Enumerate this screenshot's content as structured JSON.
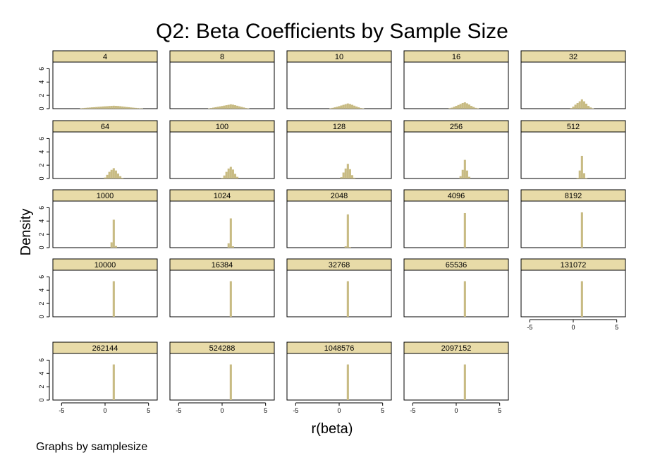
{
  "chart_data": {
    "type": "bar",
    "title": "Q2: Beta Coefficients by Sample Size",
    "xlabel": "r(beta)",
    "ylabel": "Density",
    "note": "Graphs by samplesize",
    "xlim": [
      -6,
      6
    ],
    "ylim": [
      0,
      7
    ],
    "xticks": [
      -5,
      0,
      5
    ],
    "yticks": [
      0,
      2,
      4,
      6
    ],
    "bin_width": 0.25,
    "colors": {
      "bar": "#c8bb83",
      "strip": "#e8dba8",
      "frame": "#000000"
    },
    "panels": [
      {
        "label": "4",
        "bins": [
          {
            "x": -2.75,
            "y": 0.06
          },
          {
            "x": -2.5,
            "y": 0.09
          },
          {
            "x": -2.25,
            "y": 0.12
          },
          {
            "x": -2,
            "y": 0.15
          },
          {
            "x": -1.75,
            "y": 0.17
          },
          {
            "x": -1.5,
            "y": 0.2
          },
          {
            "x": -1.25,
            "y": 0.22
          },
          {
            "x": -1,
            "y": 0.25
          },
          {
            "x": -0.75,
            "y": 0.28
          },
          {
            "x": -0.5,
            "y": 0.3
          },
          {
            "x": -0.25,
            "y": 0.33
          },
          {
            "x": 0,
            "y": 0.35
          },
          {
            "x": 0.25,
            "y": 0.37
          },
          {
            "x": 0.5,
            "y": 0.4
          },
          {
            "x": 0.75,
            "y": 0.42
          },
          {
            "x": 1,
            "y": 0.44
          },
          {
            "x": 1.25,
            "y": 0.42
          },
          {
            "x": 1.5,
            "y": 0.4
          },
          {
            "x": 1.75,
            "y": 0.37
          },
          {
            "x": 2,
            "y": 0.33
          },
          {
            "x": 2.25,
            "y": 0.29
          },
          {
            "x": 2.5,
            "y": 0.25
          },
          {
            "x": 2.75,
            "y": 0.22
          },
          {
            "x": 3,
            "y": 0.18
          },
          {
            "x": 3.25,
            "y": 0.15
          },
          {
            "x": 3.5,
            "y": 0.12
          },
          {
            "x": 3.75,
            "y": 0.09
          },
          {
            "x": 4,
            "y": 0.06
          },
          {
            "x": 4.25,
            "y": 0.04
          }
        ]
      },
      {
        "label": "8",
        "bins": [
          {
            "x": -1.5,
            "y": 0.05
          },
          {
            "x": -1.25,
            "y": 0.1
          },
          {
            "x": -1,
            "y": 0.16
          },
          {
            "x": -0.75,
            "y": 0.22
          },
          {
            "x": -0.5,
            "y": 0.28
          },
          {
            "x": -0.25,
            "y": 0.34
          },
          {
            "x": 0,
            "y": 0.4
          },
          {
            "x": 0.25,
            "y": 0.46
          },
          {
            "x": 0.5,
            "y": 0.52
          },
          {
            "x": 0.75,
            "y": 0.58
          },
          {
            "x": 1,
            "y": 0.65
          },
          {
            "x": 1.25,
            "y": 0.6
          },
          {
            "x": 1.5,
            "y": 0.52
          },
          {
            "x": 1.75,
            "y": 0.44
          },
          {
            "x": 2,
            "y": 0.35
          },
          {
            "x": 2.25,
            "y": 0.26
          },
          {
            "x": 2.5,
            "y": 0.18
          },
          {
            "x": 2.75,
            "y": 0.1
          },
          {
            "x": 3,
            "y": 0.05
          }
        ]
      },
      {
        "label": "10",
        "bins": [
          {
            "x": -1,
            "y": 0.06
          },
          {
            "x": -0.75,
            "y": 0.12
          },
          {
            "x": -0.5,
            "y": 0.2
          },
          {
            "x": -0.25,
            "y": 0.28
          },
          {
            "x": 0,
            "y": 0.38
          },
          {
            "x": 0.25,
            "y": 0.48
          },
          {
            "x": 0.5,
            "y": 0.58
          },
          {
            "x": 0.75,
            "y": 0.68
          },
          {
            "x": 1,
            "y": 0.78
          },
          {
            "x": 1.25,
            "y": 0.7
          },
          {
            "x": 1.5,
            "y": 0.58
          },
          {
            "x": 1.75,
            "y": 0.45
          },
          {
            "x": 2,
            "y": 0.32
          },
          {
            "x": 2.25,
            "y": 0.2
          },
          {
            "x": 2.5,
            "y": 0.1
          },
          {
            "x": 2.75,
            "y": 0.05
          }
        ]
      },
      {
        "label": "16",
        "bins": [
          {
            "x": -0.75,
            "y": 0.08
          },
          {
            "x": -0.5,
            "y": 0.15
          },
          {
            "x": -0.25,
            "y": 0.28
          },
          {
            "x": 0,
            "y": 0.42
          },
          {
            "x": 0.25,
            "y": 0.55
          },
          {
            "x": 0.5,
            "y": 0.7
          },
          {
            "x": 0.75,
            "y": 0.85
          },
          {
            "x": 1,
            "y": 0.95
          },
          {
            "x": 1.25,
            "y": 0.8
          },
          {
            "x": 1.5,
            "y": 0.62
          },
          {
            "x": 1.75,
            "y": 0.42
          },
          {
            "x": 2,
            "y": 0.25
          },
          {
            "x": 2.25,
            "y": 0.12
          },
          {
            "x": 2.5,
            "y": 0.06
          }
        ]
      },
      {
        "label": "32",
        "bins": [
          {
            "x": -0.25,
            "y": 0.1
          },
          {
            "x": 0,
            "y": 0.3
          },
          {
            "x": 0.25,
            "y": 0.6
          },
          {
            "x": 0.5,
            "y": 0.85
          },
          {
            "x": 0.75,
            "y": 1.1
          },
          {
            "x": 1,
            "y": 1.4
          },
          {
            "x": 1.25,
            "y": 1.1
          },
          {
            "x": 1.5,
            "y": 0.75
          },
          {
            "x": 1.75,
            "y": 0.42
          },
          {
            "x": 2,
            "y": 0.18
          },
          {
            "x": 2.25,
            "y": 0.06
          }
        ]
      },
      {
        "label": "64",
        "bins": [
          {
            "x": 0,
            "y": 0.15
          },
          {
            "x": 0.25,
            "y": 0.55
          },
          {
            "x": 0.5,
            "y": 1.0
          },
          {
            "x": 0.75,
            "y": 1.3
          },
          {
            "x": 1,
            "y": 1.55
          },
          {
            "x": 1.25,
            "y": 1.2
          },
          {
            "x": 1.5,
            "y": 0.75
          },
          {
            "x": 1.75,
            "y": 0.35
          },
          {
            "x": 2,
            "y": 0.1
          }
        ]
      },
      {
        "label": "100",
        "bins": [
          {
            "x": 0,
            "y": 0.1
          },
          {
            "x": 0.25,
            "y": 0.45
          },
          {
            "x": 0.5,
            "y": 1.0
          },
          {
            "x": 0.75,
            "y": 1.5
          },
          {
            "x": 1,
            "y": 1.75
          },
          {
            "x": 1.25,
            "y": 1.35
          },
          {
            "x": 1.5,
            "y": 0.7
          },
          {
            "x": 1.75,
            "y": 0.25
          }
        ]
      },
      {
        "label": "128",
        "bins": [
          {
            "x": 0.25,
            "y": 0.2
          },
          {
            "x": 0.5,
            "y": 0.9
          },
          {
            "x": 0.75,
            "y": 1.5
          },
          {
            "x": 1,
            "y": 2.2
          },
          {
            "x": 1.25,
            "y": 1.4
          },
          {
            "x": 1.5,
            "y": 0.5
          },
          {
            "x": 1.75,
            "y": 0.12
          }
        ]
      },
      {
        "label": "256",
        "bins": [
          {
            "x": 0.5,
            "y": 0.35
          },
          {
            "x": 0.75,
            "y": 1.3
          },
          {
            "x": 1,
            "y": 2.8
          },
          {
            "x": 1.25,
            "y": 1.2
          },
          {
            "x": 1.5,
            "y": 0.25
          }
        ]
      },
      {
        "label": "512",
        "bins": [
          {
            "x": 0.5,
            "y": 0.1
          },
          {
            "x": 0.75,
            "y": 1.2
          },
          {
            "x": 1,
            "y": 3.4
          },
          {
            "x": 1.25,
            "y": 0.8
          },
          {
            "x": 1.5,
            "y": 0.08
          }
        ]
      },
      {
        "label": "1000",
        "bins": [
          {
            "x": 0.75,
            "y": 0.8
          },
          {
            "x": 1,
            "y": 4.2
          },
          {
            "x": 1.25,
            "y": 0.25
          }
        ]
      },
      {
        "label": "1024",
        "bins": [
          {
            "x": 0.75,
            "y": 0.65
          },
          {
            "x": 1,
            "y": 4.4
          },
          {
            "x": 1.25,
            "y": 0.2
          }
        ]
      },
      {
        "label": "2048",
        "bins": [
          {
            "x": 0.75,
            "y": 0.2
          },
          {
            "x": 1,
            "y": 5.0
          },
          {
            "x": 1.25,
            "y": 0.1
          }
        ]
      },
      {
        "label": "4096",
        "bins": [
          {
            "x": 1,
            "y": 5.2
          }
        ]
      },
      {
        "label": "8192",
        "bins": [
          {
            "x": 1,
            "y": 5.3
          }
        ]
      },
      {
        "label": "10000",
        "bins": [
          {
            "x": 1,
            "y": 5.35
          }
        ]
      },
      {
        "label": "16384",
        "bins": [
          {
            "x": 1,
            "y": 5.35
          }
        ]
      },
      {
        "label": "32768",
        "bins": [
          {
            "x": 1,
            "y": 5.35
          }
        ]
      },
      {
        "label": "65536",
        "bins": [
          {
            "x": 1,
            "y": 5.35
          }
        ]
      },
      {
        "label": "131072",
        "bins": [
          {
            "x": 1,
            "y": 5.35
          }
        ]
      },
      {
        "label": "262144",
        "bins": [
          {
            "x": 1,
            "y": 5.35
          }
        ]
      },
      {
        "label": "524288",
        "bins": [
          {
            "x": 1,
            "y": 5.35
          }
        ]
      },
      {
        "label": "1048576",
        "bins": [
          {
            "x": 1,
            "y": 5.35
          }
        ]
      },
      {
        "label": "2097152",
        "bins": [
          {
            "x": 1,
            "y": 5.35
          }
        ]
      }
    ]
  }
}
